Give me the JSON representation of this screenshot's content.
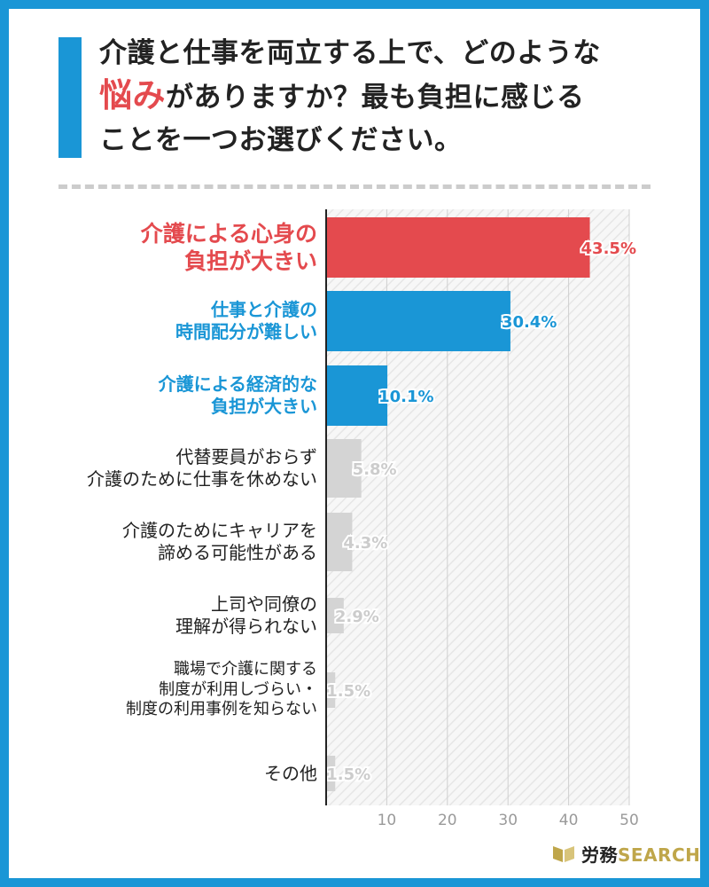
{
  "title": {
    "line1": "介護と仕事を両立する上で、どのような",
    "line2_highlight": "悩み",
    "line2_rest": "がありますか？最も負担に感じる",
    "line3": "ことを一つお選びください。"
  },
  "chart_data": {
    "type": "bar",
    "orientation": "horizontal",
    "categories": [
      [
        "介護による心身の",
        "負担が大きい"
      ],
      [
        "仕事と介護の",
        "時間配分が難しい"
      ],
      [
        "介護による経済的な",
        "負担が大きい"
      ],
      [
        "代替要員がおらず",
        "介護のために仕事を休めない"
      ],
      [
        "介護のためにキャリアを",
        "諦める可能性がある"
      ],
      [
        "上司や同僚の",
        "理解が得られない"
      ],
      [
        "職場で介護に関する",
        "制度が利用しづらい・",
        "制度の利用事例を知らない"
      ],
      [
        "その他"
      ]
    ],
    "values": [
      43.5,
      30.4,
      10.1,
      5.8,
      4.3,
      2.9,
      1.5,
      1.5
    ],
    "value_labels": [
      "43.5%",
      "30.4%",
      "10.1%",
      "5.8%",
      "4.3%",
      "2.9%",
      "1.5%",
      "1.5%"
    ],
    "bar_colors": [
      "#e44a4e",
      "#1a96d6",
      "#1a96d6",
      "#d4d4d4",
      "#d4d4d4",
      "#d4d4d4",
      "#d4d4d4",
      "#d4d4d4"
    ],
    "label_colors": [
      "#e44a4e",
      "#1a96d6",
      "#1a96d6",
      "#222222",
      "#222222",
      "#222222",
      "#222222",
      "#222222"
    ],
    "value_label_colors": [
      "#e44a4e",
      "#1a96d6",
      "#1a96d6",
      "#cccccc",
      "#cccccc",
      "#cccccc",
      "#cccccc",
      "#cccccc"
    ],
    "xlim": [
      0,
      50
    ],
    "xticks": [
      10,
      20,
      30,
      40,
      50
    ],
    "xlabel": "",
    "ylabel": "",
    "grid": true
  },
  "brand": {
    "kanji": "労務",
    "latin": "SEARCH"
  },
  "colors": {
    "frame": "#1a96d6",
    "accent_red": "#e44a4e",
    "accent_blue": "#1a96d6",
    "neutral_bar": "#d4d4d4",
    "hatch": "#e6e6e6",
    "brand_gold": "#bfa64a"
  }
}
